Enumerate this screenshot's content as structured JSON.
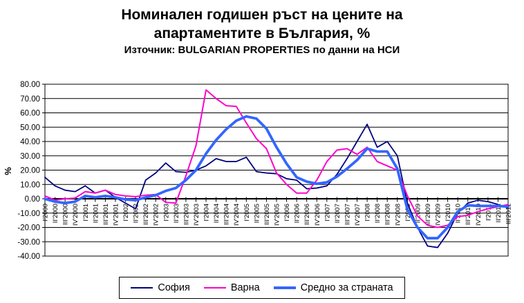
{
  "title_lines": [
    "Номинален годишен ръст на цените на",
    "апартаментите в България, %"
  ],
  "subtitle": "Източник: BULGARIAN PROPERTIES по данни на НСИ",
  "y_axis_label": "%",
  "colors": {
    "background": "#FFFFFF",
    "grid": "#000000",
    "axis": "#000000",
    "sofia": "#000080",
    "varna": "#FF00CC",
    "average": "#3366FF"
  },
  "chart_data": {
    "type": "line",
    "title": "Номинален годишен ръст на цените на апартаментите в България, %",
    "subtitle": "Източник: BULGARIAN PROPERTIES по данни на НСИ",
    "ylabel": "%",
    "ylim": [
      -40,
      80
    ],
    "ytick_step": 10,
    "grid": true,
    "legend_position": "bottom",
    "categories": [
      "I'2000",
      "II'2000",
      "III'2000",
      "IV'2000",
      "I'2001",
      "II'2001",
      "III'2001",
      "IV'2001",
      "I'2002",
      "II'2002",
      "III'2002",
      "IV'2002",
      "I'2003",
      "II'2003",
      "III'2003",
      "IV'2003",
      "I'2004",
      "II'2004",
      "III'2004",
      "IV'2004",
      "I'2005",
      "II'2005",
      "III'2005",
      "IV'2005",
      "I'2006",
      "II'2006",
      "III'2006",
      "IV'2006",
      "I'2007",
      "II'2007",
      "III'2007",
      "IV'2007",
      "I'2008",
      "II'2008",
      "III'2008",
      "IV'2008",
      "I'2009",
      "II'2009",
      "III'2009",
      "IV'2009",
      "I'2010",
      "II'2010",
      "III'2010",
      "IV'2010",
      "I'2011",
      "II'2011",
      "III'2011"
    ],
    "series": [
      {
        "name": "София",
        "color": "#000080",
        "stroke_width": 1.8,
        "values": [
          15,
          9,
          6,
          5,
          9,
          4,
          6,
          1,
          -3,
          -7,
          13,
          18,
          25,
          19,
          18.5,
          20,
          23,
          28,
          26,
          26,
          29,
          19,
          18,
          17.5,
          14,
          13,
          7,
          7.5,
          9,
          17,
          28,
          40,
          52,
          36,
          40,
          30,
          -3,
          -20,
          -33,
          -34,
          -24,
          -10,
          -3,
          -1,
          -2,
          -4,
          -6.5
        ]
      },
      {
        "name": "Варна",
        "color": "#FF00CC",
        "stroke_width": 2,
        "values": [
          2,
          -1,
          0,
          0.5,
          5,
          4,
          6,
          3,
          2,
          1.5,
          2.5,
          3,
          -2.5,
          -3,
          16,
          37,
          76,
          70,
          65,
          64.5,
          53,
          42,
          35,
          18,
          10,
          4,
          4,
          13,
          26,
          34,
          35,
          31,
          36,
          26,
          23,
          20,
          2,
          -12,
          -18.5,
          -20,
          -18.5,
          -12.5,
          -11.5,
          -9,
          -7,
          -5.5,
          -4
        ]
      },
      {
        "name": "Средно за страната",
        "color": "#3366FF",
        "stroke_width": 3.8,
        "values": [
          0,
          -2,
          -3,
          -2,
          2,
          1,
          2,
          1,
          -0.5,
          -1,
          1,
          2.5,
          5.5,
          7.5,
          13,
          20,
          31.5,
          41,
          48.5,
          54.5,
          57.5,
          56,
          49,
          36,
          24.5,
          15,
          12,
          10.5,
          11.5,
          15.5,
          21,
          27,
          35,
          33,
          33,
          21,
          -7.5,
          -20,
          -27.5,
          -27.5,
          -20,
          -9,
          -4.5,
          -5,
          -5,
          -5,
          -5.5
        ]
      }
    ]
  }
}
